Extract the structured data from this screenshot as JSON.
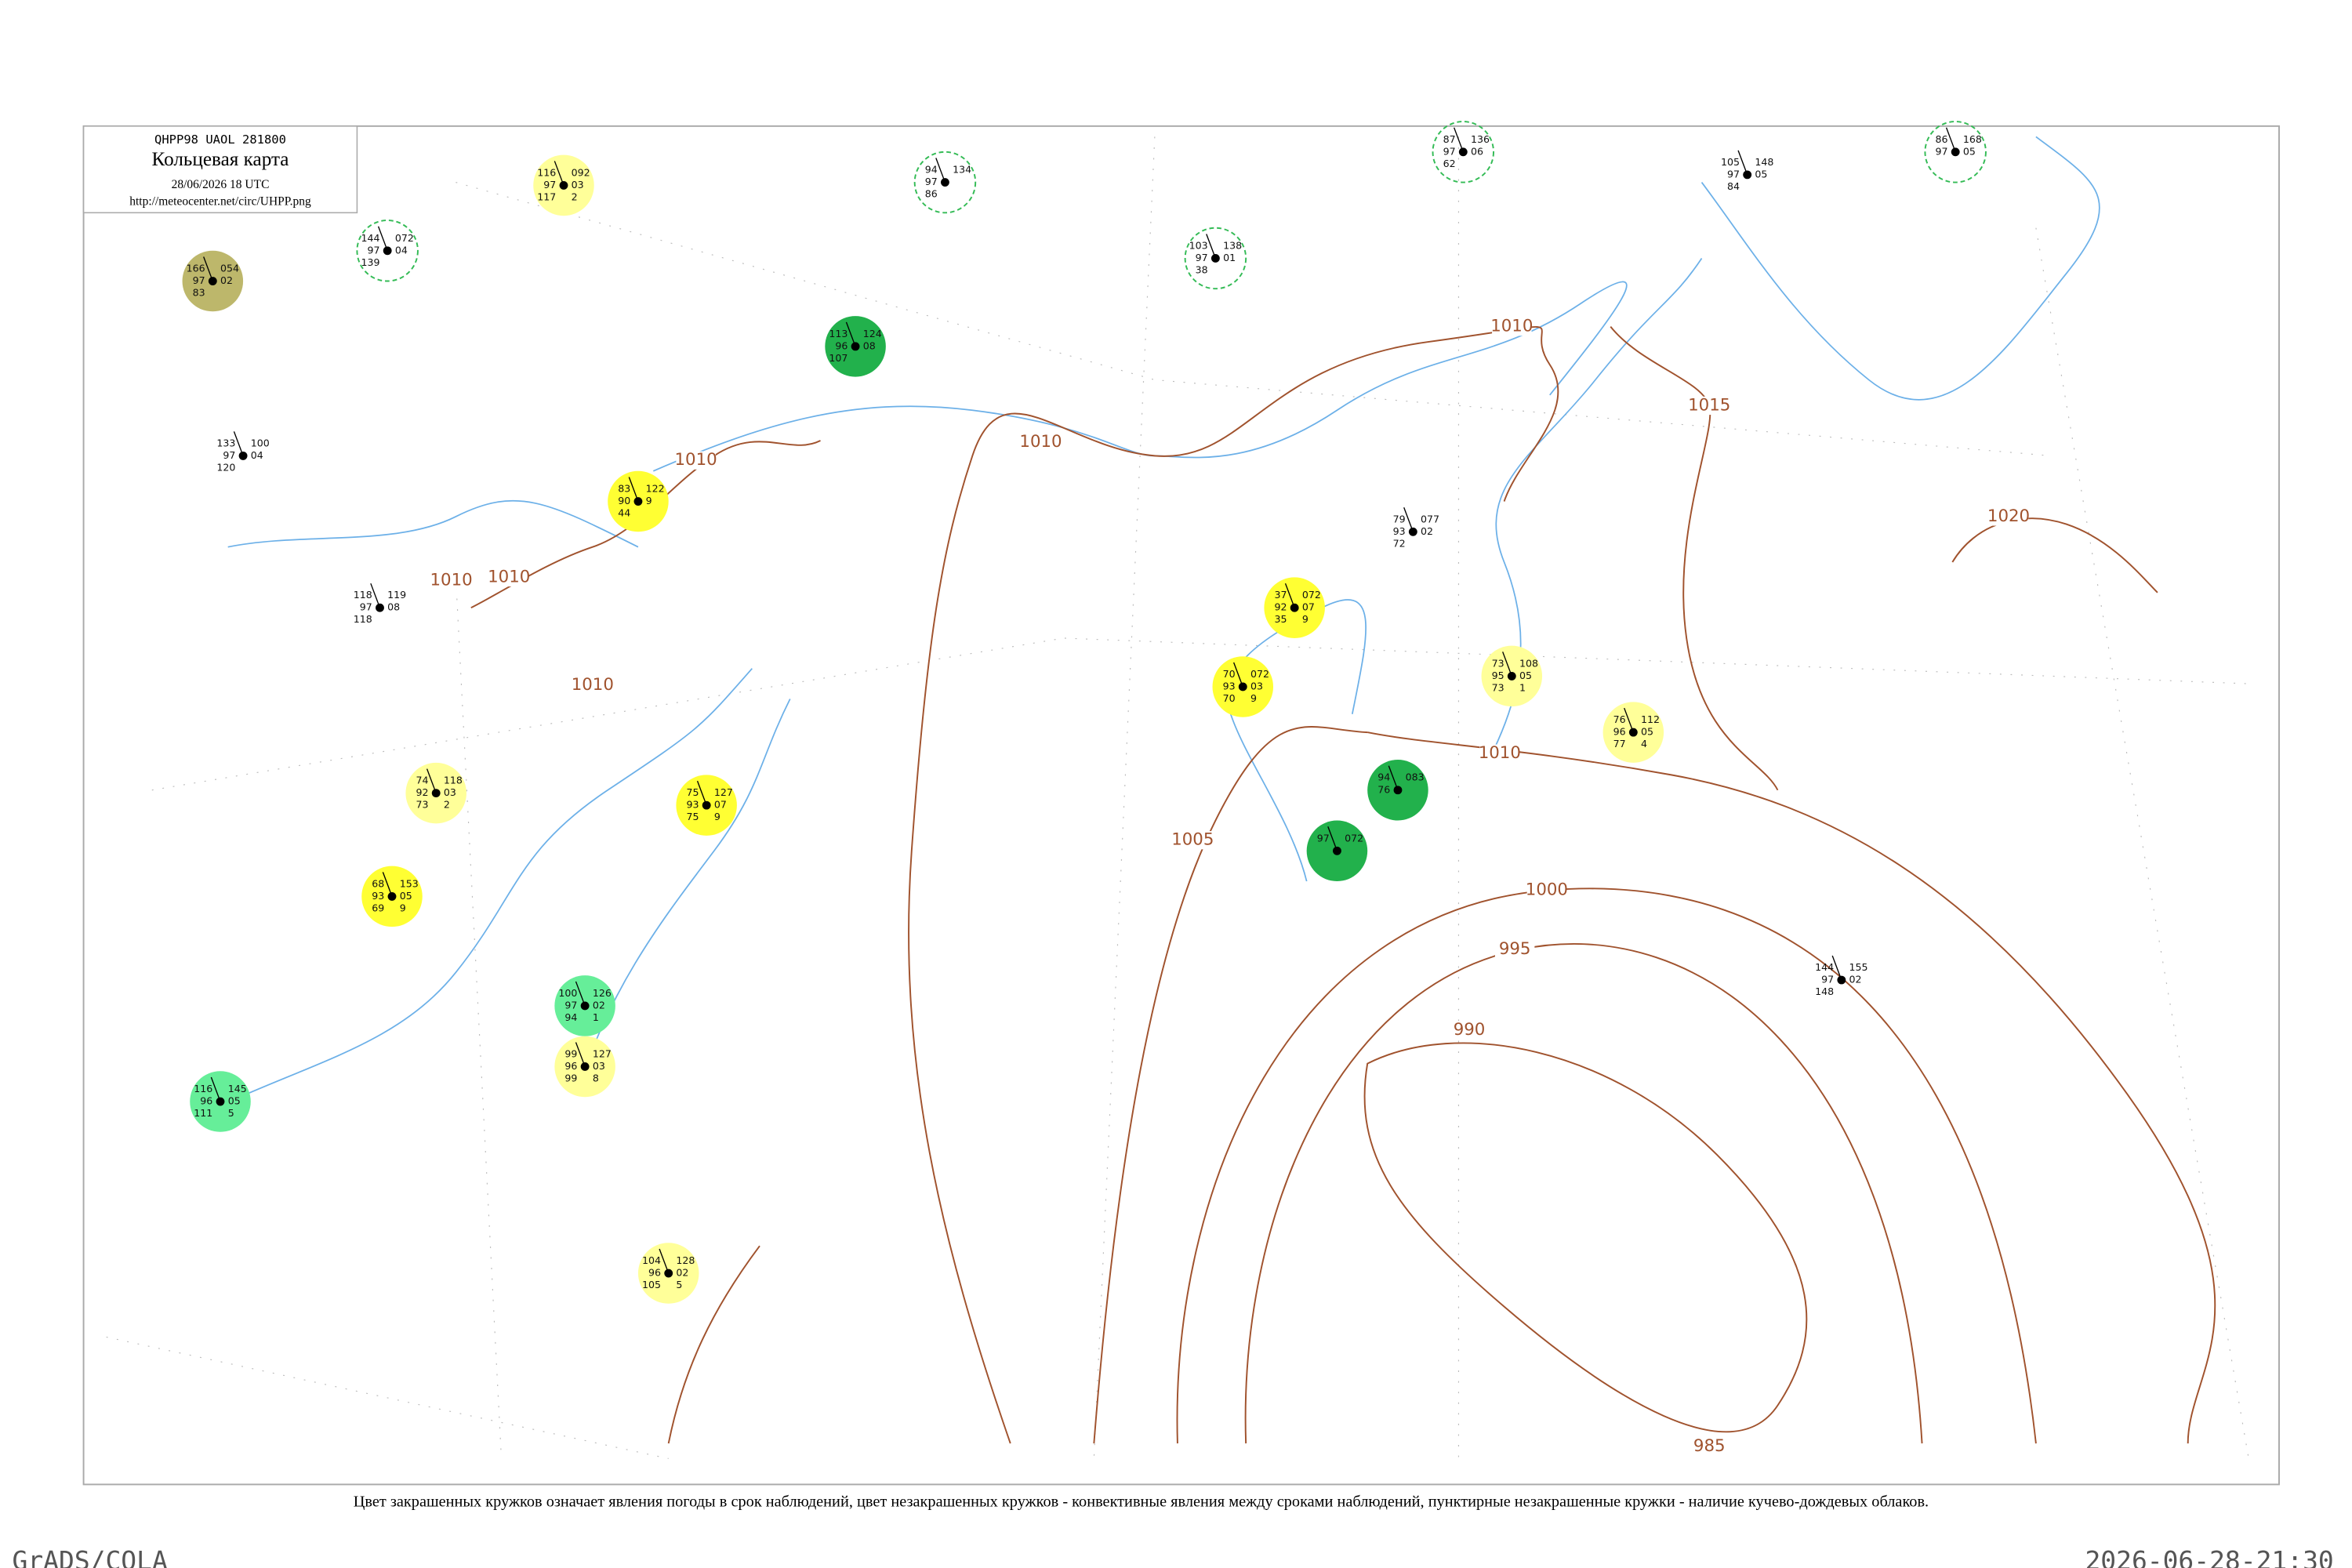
{
  "header": {
    "code": "QHPP98  UAOL  281800",
    "title": "Кольцевая карта",
    "time": "28/06/2026 18 UTC",
    "url": "http://meteocenter.net/circ/UHPP.png"
  },
  "footer": {
    "caption": "Цвет закрашенных кружков означает явления погоды в срок наблюдений, цвет незакрашенных кружков - конвективные явления между сроками наблюдений, пунктирные незакрашенные кружки - наличие кучево-дождевых облаков.",
    "software": "GrADS/COLA",
    "timestamp": "2026-06-28-21:30"
  },
  "isobars": [
    "990",
    "995",
    "1000",
    "1005",
    "1010",
    "1010",
    "1010",
    "1010",
    "1010",
    "1010",
    "1010",
    "1015",
    "1020",
    "985"
  ],
  "stations": [
    {
      "left": [
        "116",
        "97",
        "117"
      ],
      "right": [
        "092",
        "03",
        "2"
      ],
      "ring": "#ffff99"
    },
    {
      "left": [
        "144",
        "97",
        "139"
      ],
      "right": [
        "072",
        "04"
      ],
      "ring": "dashed"
    },
    {
      "left": [
        "166",
        "97",
        "83"
      ],
      "right": [
        "054",
        "02"
      ],
      "ring": "#bdb76b"
    },
    {
      "left": [
        "113",
        "96",
        "107"
      ],
      "right": [
        "124",
        "08"
      ],
      "ring": "#22b14c"
    },
    {
      "left": [
        "83",
        "90",
        "44"
      ],
      "right": [
        "122",
        "9"
      ],
      "ring": "#ffff33"
    },
    {
      "left": [
        "75",
        "93",
        "75"
      ],
      "right": [
        "127",
        "07",
        "9"
      ],
      "ring": "#ffff33"
    },
    {
      "left": [
        "68",
        "93",
        "69"
      ],
      "right": [
        "153",
        "05",
        "9"
      ],
      "ring": "#ffff33"
    },
    {
      "left": [
        "74",
        "92",
        "73"
      ],
      "right": [
        "118",
        "03",
        "2"
      ],
      "ring": "#ffff99"
    },
    {
      "left": [
        "100",
        "97",
        "94"
      ],
      "right": [
        "126",
        "02",
        "1"
      ],
      "ring": "#66ee99"
    },
    {
      "left": [
        "99",
        "96",
        "99"
      ],
      "right": [
        "127",
        "03",
        "8"
      ],
      "ring": "#ffff99"
    },
    {
      "left": [
        "116",
        "96",
        "111"
      ],
      "right": [
        "145",
        "05",
        "5"
      ],
      "ring": "#66ee99"
    },
    {
      "left": [
        "104",
        "96",
        "105"
      ],
      "right": [
        "128",
        "02",
        "5"
      ],
      "ring": "#ffff99"
    },
    {
      "left": [
        "37",
        "92",
        "35"
      ],
      "right": [
        "072",
        "07",
        "9"
      ],
      "ring": "#ffff33"
    },
    {
      "left": [
        "70",
        "93",
        "70"
      ],
      "right": [
        "072",
        "03",
        "9"
      ],
      "ring": "#ffff33"
    },
    {
      "left": [
        "73",
        "95",
        "73"
      ],
      "right": [
        "108",
        "05",
        "1"
      ],
      "ring": "#ffff99"
    },
    {
      "left": [
        "76",
        "96",
        "77"
      ],
      "right": [
        "112",
        "05",
        "4"
      ],
      "ring": "#ffff99"
    },
    {
      "left": [
        "144",
        "97",
        "148"
      ],
      "right": [
        "155",
        "02"
      ],
      "ring": "none"
    },
    {
      "left": [
        "94",
        "97",
        "86"
      ],
      "right": [
        "134"
      ],
      "ring": "dashed"
    },
    {
      "left": [
        "87",
        "97",
        "62"
      ],
      "right": [
        "136",
        "06"
      ],
      "ring": "dashed"
    },
    {
      "left": [
        "86",
        "97"
      ],
      "right": [
        "168",
        "05"
      ],
      "ring": "dashed"
    },
    {
      "left": [
        "103",
        "97",
        "38"
      ],
      "right": [
        "138",
        "01"
      ],
      "ring": "dashed"
    },
    {
      "left": [
        "97"
      ],
      "right": [
        "072"
      ],
      "ring": "#22b14c"
    },
    {
      "left": [
        "94",
        "76"
      ],
      "right": [
        "083"
      ],
      "ring": "#22b14c"
    },
    {
      "left": [
        "118",
        "97",
        "118"
      ],
      "right": [
        "119",
        "08"
      ],
      "ring": "none"
    },
    {
      "left": [
        "133",
        "97",
        "120"
      ],
      "right": [
        "100",
        "04"
      ],
      "ring": "none"
    },
    {
      "left": [
        "79",
        "93",
        "72"
      ],
      "right": [
        "077",
        "02"
      ],
      "ring": "none"
    },
    {
      "left": [
        "105",
        "97",
        "84"
      ],
      "right": [
        "148",
        "05"
      ],
      "ring": "none"
    }
  ]
}
